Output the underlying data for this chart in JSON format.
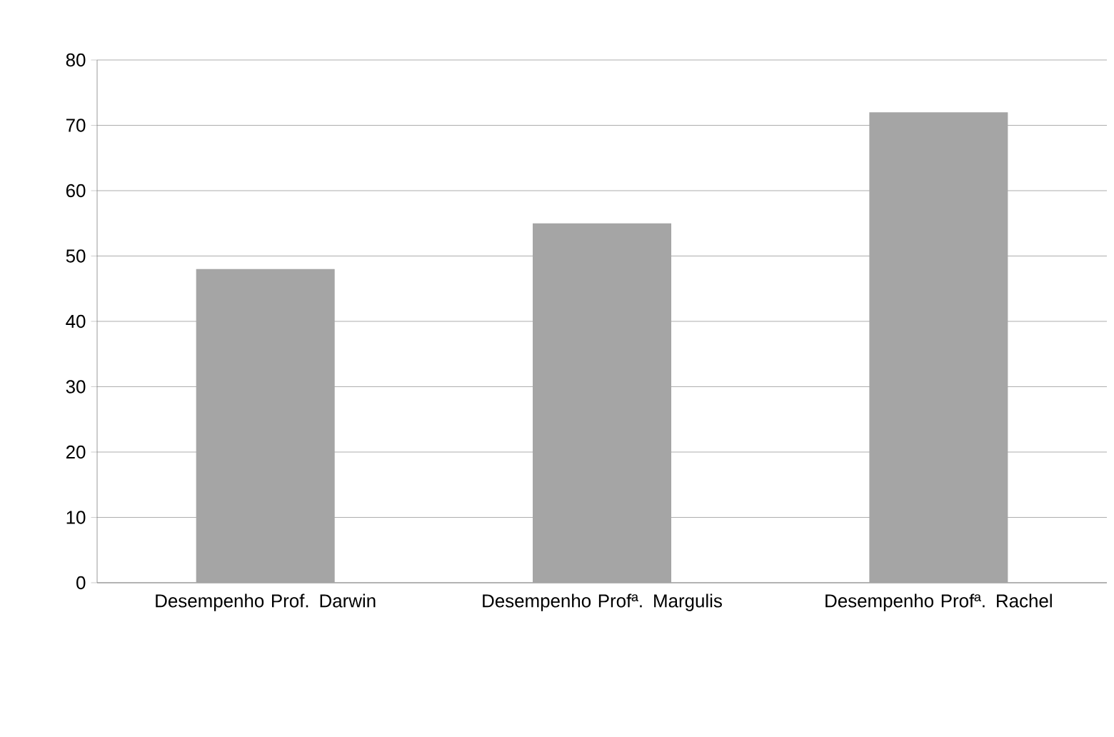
{
  "chart_data": {
    "type": "bar",
    "categories": [
      "Desempenho Prof. Darwin",
      "Desempenho Profª. Margulis",
      "Desempenho Profª. Rachel"
    ],
    "values": [
      48,
      55,
      72
    ],
    "color": "#a5a5a5",
    "ylim": [
      0,
      80
    ],
    "yticks": [
      0,
      10,
      20,
      30,
      40,
      50,
      60,
      70,
      80
    ],
    "grid": "y"
  }
}
